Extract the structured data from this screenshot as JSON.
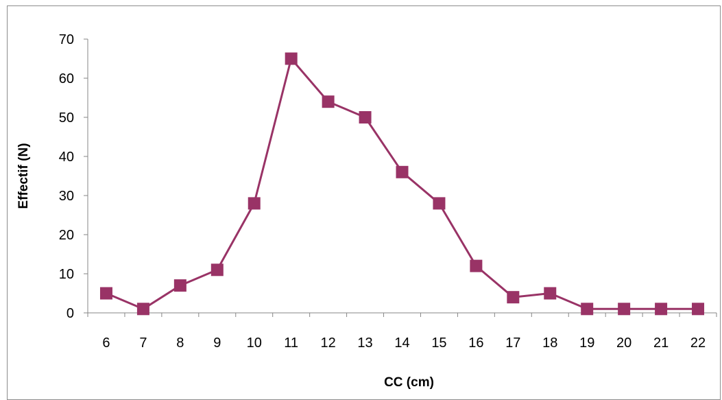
{
  "chart_data": {
    "type": "line",
    "title": "",
    "xlabel": "CC (cm)",
    "ylabel": "Effectif (N)",
    "categories": [
      "6",
      "7",
      "8",
      "9",
      "10",
      "11",
      "12",
      "13",
      "14",
      "15",
      "16",
      "17",
      "18",
      "19",
      "20",
      "21",
      "22"
    ],
    "series": [
      {
        "values": [
          5,
          1,
          7,
          11,
          28,
          65,
          54,
          50,
          36,
          28,
          12,
          4,
          5,
          1,
          1,
          1,
          1
        ],
        "color": "#993366",
        "marker": "square"
      }
    ],
    "ylim": [
      0,
      70
    ],
    "yticks": [
      0,
      10,
      20,
      30,
      40,
      50,
      60,
      70
    ],
    "grid": false,
    "legend": "none",
    "axis_color": "#868686"
  }
}
